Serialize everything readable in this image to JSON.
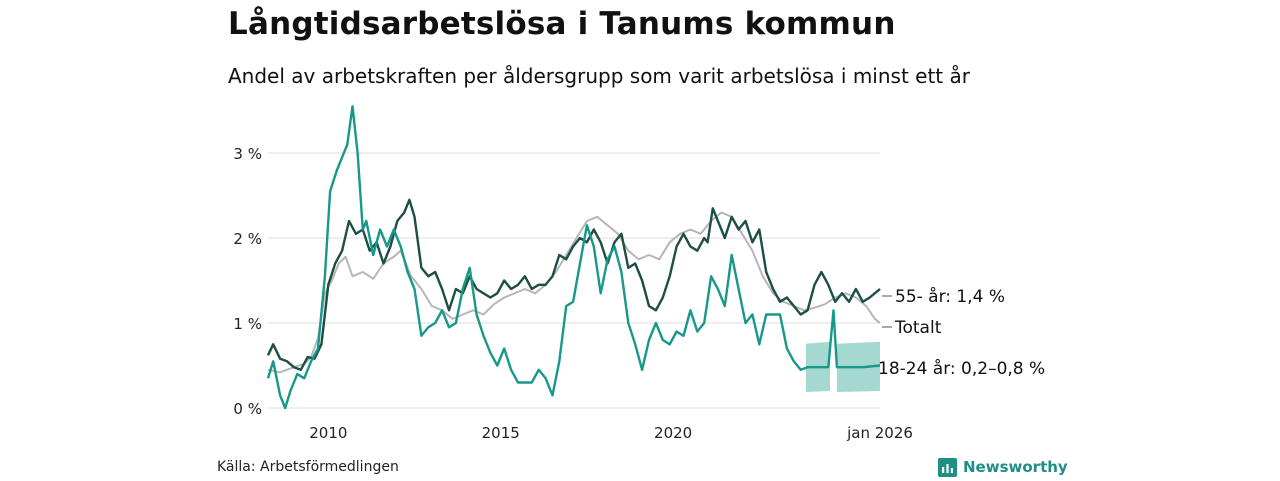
{
  "title": "Långtidsarbetslösa i Tanums kommun",
  "subtitle": "Andel av arbetskraften per åldersgrupp som varit arbetslösa i minst ett år",
  "source": "Källa: Arbetsförmedlingen",
  "brand": "Newsworthy",
  "colors": {
    "dark": "#1d4f45",
    "teal": "#18988b",
    "band": "#9fd6cf",
    "gray": "#b7b5bc",
    "grid": "#dddddd",
    "brand": "#1f8f86"
  },
  "chart_data": {
    "type": "line",
    "x_unit": "year",
    "xlim": [
      2008.25,
      2026.0
    ],
    "ylim": [
      0,
      3.6
    ],
    "x_ticks": [
      {
        "value": 2010,
        "label": "2010"
      },
      {
        "value": 2015,
        "label": "2015"
      },
      {
        "value": 2020,
        "label": "2020"
      },
      {
        "value": 2026.0,
        "label": "jan 2026"
      }
    ],
    "y_ticks": [
      {
        "value": 0,
        "label": "0 %"
      },
      {
        "value": 1,
        "label": "1 %"
      },
      {
        "value": 2,
        "label": "2 %"
      },
      {
        "value": 3,
        "label": "3 %"
      }
    ],
    "grid": true,
    "series": [
      {
        "name": "Totalt",
        "label": "Totalt",
        "color_key": "gray",
        "points": [
          [
            2008.25,
            0.45
          ],
          [
            2008.6,
            0.42
          ],
          [
            2009.0,
            0.48
          ],
          [
            2009.3,
            0.52
          ],
          [
            2009.5,
            0.6
          ],
          [
            2009.7,
            0.82
          ],
          [
            2009.9,
            1.35
          ],
          [
            2010.1,
            1.5
          ],
          [
            2010.3,
            1.7
          ],
          [
            2010.5,
            1.78
          ],
          [
            2010.7,
            1.55
          ],
          [
            2011.0,
            1.6
          ],
          [
            2011.3,
            1.52
          ],
          [
            2011.6,
            1.7
          ],
          [
            2011.9,
            1.78
          ],
          [
            2012.1,
            1.85
          ],
          [
            2012.4,
            1.55
          ],
          [
            2012.7,
            1.4
          ],
          [
            2013.0,
            1.2
          ],
          [
            2013.3,
            1.15
          ],
          [
            2013.6,
            1.05
          ],
          [
            2013.9,
            1.1
          ],
          [
            2014.2,
            1.15
          ],
          [
            2014.5,
            1.1
          ],
          [
            2014.8,
            1.22
          ],
          [
            2015.1,
            1.3
          ],
          [
            2015.4,
            1.35
          ],
          [
            2015.7,
            1.4
          ],
          [
            2016.0,
            1.35
          ],
          [
            2016.3,
            1.45
          ],
          [
            2016.6,
            1.6
          ],
          [
            2016.9,
            1.8
          ],
          [
            2017.2,
            2.0
          ],
          [
            2017.5,
            2.2
          ],
          [
            2017.8,
            2.25
          ],
          [
            2018.1,
            2.15
          ],
          [
            2018.4,
            2.05
          ],
          [
            2018.7,
            1.85
          ],
          [
            2019.0,
            1.75
          ],
          [
            2019.3,
            1.8
          ],
          [
            2019.6,
            1.75
          ],
          [
            2019.9,
            1.95
          ],
          [
            2020.2,
            2.05
          ],
          [
            2020.5,
            2.1
          ],
          [
            2020.8,
            2.05
          ],
          [
            2021.1,
            2.2
          ],
          [
            2021.4,
            2.3
          ],
          [
            2021.7,
            2.25
          ],
          [
            2022.0,
            2.05
          ],
          [
            2022.3,
            1.85
          ],
          [
            2022.6,
            1.55
          ],
          [
            2022.9,
            1.35
          ],
          [
            2023.2,
            1.25
          ],
          [
            2023.5,
            1.2
          ],
          [
            2023.8,
            1.15
          ],
          [
            2024.1,
            1.18
          ],
          [
            2024.4,
            1.22
          ],
          [
            2024.7,
            1.3
          ],
          [
            2025.0,
            1.35
          ],
          [
            2025.3,
            1.3
          ],
          [
            2025.6,
            1.2
          ],
          [
            2025.85,
            1.05
          ],
          [
            2026.0,
            1.0
          ]
        ]
      },
      {
        "name": "55- år",
        "label": "55- år: 1,4 %",
        "color_key": "dark",
        "points": [
          [
            2008.25,
            0.62
          ],
          [
            2008.4,
            0.75
          ],
          [
            2008.6,
            0.58
          ],
          [
            2008.8,
            0.55
          ],
          [
            2009.0,
            0.48
          ],
          [
            2009.2,
            0.45
          ],
          [
            2009.4,
            0.6
          ],
          [
            2009.6,
            0.58
          ],
          [
            2009.8,
            0.75
          ],
          [
            2010.0,
            1.45
          ],
          [
            2010.2,
            1.7
          ],
          [
            2010.4,
            1.85
          ],
          [
            2010.6,
            2.2
          ],
          [
            2010.8,
            2.05
          ],
          [
            2011.0,
            2.1
          ],
          [
            2011.2,
            1.85
          ],
          [
            2011.4,
            1.95
          ],
          [
            2011.6,
            1.7
          ],
          [
            2011.8,
            1.9
          ],
          [
            2012.0,
            2.2
          ],
          [
            2012.2,
            2.3
          ],
          [
            2012.35,
            2.45
          ],
          [
            2012.5,
            2.25
          ],
          [
            2012.7,
            1.65
          ],
          [
            2012.9,
            1.55
          ],
          [
            2013.1,
            1.6
          ],
          [
            2013.3,
            1.4
          ],
          [
            2013.5,
            1.15
          ],
          [
            2013.7,
            1.4
          ],
          [
            2013.9,
            1.35
          ],
          [
            2014.1,
            1.55
          ],
          [
            2014.3,
            1.4
          ],
          [
            2014.5,
            1.35
          ],
          [
            2014.7,
            1.3
          ],
          [
            2014.9,
            1.35
          ],
          [
            2015.1,
            1.5
          ],
          [
            2015.3,
            1.4
          ],
          [
            2015.5,
            1.45
          ],
          [
            2015.7,
            1.55
          ],
          [
            2015.9,
            1.4
          ],
          [
            2016.1,
            1.45
          ],
          [
            2016.3,
            1.45
          ],
          [
            2016.5,
            1.55
          ],
          [
            2016.7,
            1.8
          ],
          [
            2016.9,
            1.75
          ],
          [
            2017.1,
            1.9
          ],
          [
            2017.3,
            2.0
          ],
          [
            2017.5,
            1.95
          ],
          [
            2017.7,
            2.1
          ],
          [
            2017.9,
            1.95
          ],
          [
            2018.1,
            1.7
          ],
          [
            2018.3,
            1.95
          ],
          [
            2018.5,
            2.05
          ],
          [
            2018.7,
            1.65
          ],
          [
            2018.9,
            1.7
          ],
          [
            2019.1,
            1.5
          ],
          [
            2019.3,
            1.2
          ],
          [
            2019.5,
            1.15
          ],
          [
            2019.7,
            1.3
          ],
          [
            2019.9,
            1.55
          ],
          [
            2020.1,
            1.9
          ],
          [
            2020.3,
            2.05
          ],
          [
            2020.5,
            1.9
          ],
          [
            2020.7,
            1.85
          ],
          [
            2020.9,
            2.0
          ],
          [
            2021.0,
            1.95
          ],
          [
            2021.15,
            2.35
          ],
          [
            2021.3,
            2.2
          ],
          [
            2021.5,
            2.0
          ],
          [
            2021.7,
            2.25
          ],
          [
            2021.9,
            2.1
          ],
          [
            2022.1,
            2.2
          ],
          [
            2022.3,
            1.95
          ],
          [
            2022.5,
            2.1
          ],
          [
            2022.7,
            1.6
          ],
          [
            2022.9,
            1.4
          ],
          [
            2023.1,
            1.25
          ],
          [
            2023.3,
            1.3
          ],
          [
            2023.5,
            1.2
          ],
          [
            2023.7,
            1.1
          ],
          [
            2023.9,
            1.15
          ],
          [
            2024.1,
            1.45
          ],
          [
            2024.3,
            1.6
          ],
          [
            2024.5,
            1.45
          ],
          [
            2024.7,
            1.25
          ],
          [
            2024.9,
            1.35
          ],
          [
            2025.1,
            1.25
          ],
          [
            2025.3,
            1.4
          ],
          [
            2025.5,
            1.25
          ],
          [
            2025.7,
            1.3
          ],
          [
            2025.85,
            1.35
          ],
          [
            2026.0,
            1.4
          ]
        ]
      },
      {
        "name": "18-24 år",
        "label": "18-24 år: 0,2–0,8 %",
        "color_key": "teal",
        "points": [
          [
            2008.25,
            0.35
          ],
          [
            2008.4,
            0.55
          ],
          [
            2008.6,
            0.15
          ],
          [
            2008.75,
            0.0
          ],
          [
            2008.9,
            0.2
          ],
          [
            2009.1,
            0.4
          ],
          [
            2009.3,
            0.35
          ],
          [
            2009.5,
            0.55
          ],
          [
            2009.7,
            0.7
          ],
          [
            2009.9,
            1.55
          ],
          [
            2010.05,
            2.55
          ],
          [
            2010.25,
            2.8
          ],
          [
            2010.4,
            2.95
          ],
          [
            2010.55,
            3.1
          ],
          [
            2010.7,
            3.55
          ],
          [
            2010.85,
            3.0
          ],
          [
            2011.0,
            2.1
          ],
          [
            2011.1,
            2.2
          ],
          [
            2011.3,
            1.8
          ],
          [
            2011.5,
            2.1
          ],
          [
            2011.7,
            1.9
          ],
          [
            2011.9,
            2.1
          ],
          [
            2012.1,
            1.9
          ],
          [
            2012.3,
            1.6
          ],
          [
            2012.5,
            1.4
          ],
          [
            2012.7,
            0.85
          ],
          [
            2012.9,
            0.95
          ],
          [
            2013.1,
            1.0
          ],
          [
            2013.3,
            1.15
          ],
          [
            2013.5,
            0.95
          ],
          [
            2013.7,
            1.0
          ],
          [
            2013.9,
            1.4
          ],
          [
            2014.1,
            1.65
          ],
          [
            2014.3,
            1.1
          ],
          [
            2014.5,
            0.85
          ],
          [
            2014.7,
            0.65
          ],
          [
            2014.9,
            0.5
          ],
          [
            2015.1,
            0.7
          ],
          [
            2015.3,
            0.45
          ],
          [
            2015.5,
            0.3
          ],
          [
            2015.7,
            0.3
          ],
          [
            2015.9,
            0.3
          ],
          [
            2016.1,
            0.45
          ],
          [
            2016.3,
            0.35
          ],
          [
            2016.5,
            0.15
          ],
          [
            2016.7,
            0.55
          ],
          [
            2016.9,
            1.2
          ],
          [
            2017.1,
            1.25
          ],
          [
            2017.3,
            1.7
          ],
          [
            2017.5,
            2.15
          ],
          [
            2017.7,
            1.9
          ],
          [
            2017.9,
            1.35
          ],
          [
            2018.1,
            1.75
          ],
          [
            2018.3,
            1.9
          ],
          [
            2018.5,
            1.6
          ],
          [
            2018.7,
            1.0
          ],
          [
            2018.9,
            0.75
          ],
          [
            2019.1,
            0.45
          ],
          [
            2019.3,
            0.8
          ],
          [
            2019.5,
            1.0
          ],
          [
            2019.7,
            0.8
          ],
          [
            2019.9,
            0.75
          ],
          [
            2020.1,
            0.9
          ],
          [
            2020.3,
            0.85
          ],
          [
            2020.5,
            1.15
          ],
          [
            2020.7,
            0.9
          ],
          [
            2020.9,
            1.0
          ],
          [
            2021.1,
            1.55
          ],
          [
            2021.3,
            1.4
          ],
          [
            2021.5,
            1.2
          ],
          [
            2021.7,
            1.8
          ],
          [
            2021.9,
            1.4
          ],
          [
            2022.1,
            1.0
          ],
          [
            2022.3,
            1.1
          ],
          [
            2022.5,
            0.75
          ],
          [
            2022.7,
            1.1
          ],
          [
            2022.9,
            1.1
          ],
          [
            2023.1,
            1.1
          ],
          [
            2023.3,
            0.7
          ],
          [
            2023.5,
            0.55
          ],
          [
            2023.7,
            0.45
          ],
          [
            2023.9,
            0.48
          ],
          [
            2024.1,
            0.48
          ],
          [
            2024.3,
            0.48
          ],
          [
            2024.5,
            0.48
          ],
          [
            2024.65,
            1.15
          ],
          [
            2024.75,
            0.48
          ],
          [
            2025.0,
            0.48
          ],
          [
            2025.5,
            0.48
          ],
          [
            2026.0,
            0.5
          ]
        ],
        "band": {
          "note": "uncertainty range where suppressed",
          "segments": [
            {
              "x": [
                2023.85,
                2024.55
              ],
              "low": 0.2,
              "high": 0.78
            },
            {
              "x": [
                2024.75,
                2026.0
              ],
              "low": 0.2,
              "high": 0.78
            }
          ]
        }
      }
    ]
  }
}
